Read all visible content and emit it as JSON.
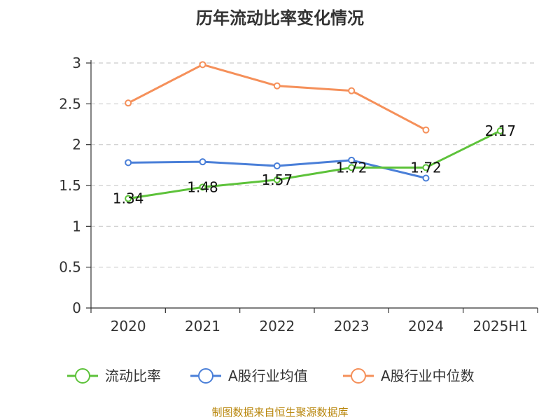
{
  "chart_data": {
    "type": "line",
    "title": "历年流动比率变化情况",
    "categories": [
      "2020",
      "2021",
      "2022",
      "2023",
      "2024",
      "2025H1"
    ],
    "ylim": [
      0,
      3
    ],
    "yticks": [
      "0",
      "0.5",
      "1",
      "1.5",
      "2",
      "2.5",
      "3"
    ],
    "grid": true,
    "legend_position": "bottom",
    "series": [
      {
        "name": "流动比率",
        "color": "#5dc23a",
        "values": [
          1.34,
          1.48,
          1.57,
          1.72,
          1.72,
          2.17
        ],
        "labels": [
          "1.34",
          "1.48",
          "1.57",
          "1.72",
          "1.72",
          "2.17"
        ]
      },
      {
        "name": "A股行业均值",
        "color": "#4a7fd8",
        "values": [
          1.78,
          1.79,
          1.74,
          1.81,
          1.59,
          null
        ],
        "labels": null
      },
      {
        "name": "A股行业中位数",
        "color": "#f5905a",
        "values": [
          2.51,
          2.98,
          2.72,
          2.66,
          2.18,
          null
        ],
        "labels": null
      }
    ],
    "source": "制图数据来自恒生聚源数据库"
  }
}
